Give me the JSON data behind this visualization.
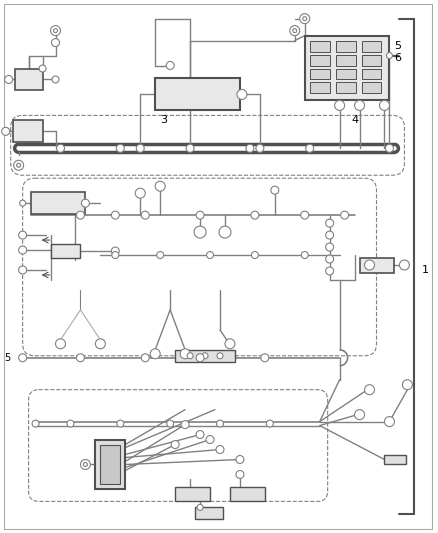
{
  "bg_color": "#f5f5f5",
  "line_color": "#808080",
  "dark_line": "#505050",
  "figsize": [
    4.38,
    5.33
  ],
  "dpi": 100
}
